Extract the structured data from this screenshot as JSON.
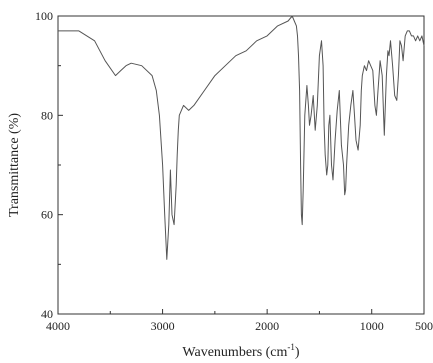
{
  "chart_data": {
    "type": "line",
    "title": "",
    "xlabel": "Wavenumbers (cm",
    "xlabel_sup": "-1",
    "xlabel_close": ")",
    "ylabel": "Transmittance (%)",
    "xlim": [
      4000,
      500
    ],
    "ylim": [
      40,
      100
    ],
    "x_reversed": true,
    "grid": false,
    "x_ticks": [
      4000,
      3000,
      2000,
      1000,
      500
    ],
    "x_tick_labels": [
      "4000",
      "3000",
      "2000",
      "1000",
      "500"
    ],
    "y_ticks": [
      40,
      60,
      80,
      100
    ],
    "y_tick_labels": [
      "40",
      "60",
      "80",
      "100"
    ],
    "line_color": "#555555",
    "series": [
      {
        "x": [
          4000,
          3800,
          3650,
          3550,
          3450,
          3400,
          3350,
          3300,
          3200,
          3100,
          3060,
          3030,
          3000,
          2980,
          2960,
          2940,
          2925,
          2910,
          2890,
          2870,
          2860,
          2850,
          2840,
          2800,
          2750,
          2700,
          2600,
          2500,
          2400,
          2300,
          2200,
          2100,
          2000,
          1900,
          1800,
          1760,
          1740,
          1720,
          1710,
          1700,
          1690,
          1680,
          1672,
          1665,
          1655,
          1640,
          1620,
          1605,
          1595,
          1580,
          1560,
          1540,
          1520,
          1500,
          1480,
          1465,
          1455,
          1445,
          1430,
          1420,
          1410,
          1400,
          1385,
          1370,
          1350,
          1330,
          1310,
          1290,
          1270,
          1258,
          1250,
          1240,
          1220,
          1200,
          1180,
          1165,
          1150,
          1130,
          1110,
          1100,
          1090,
          1070,
          1050,
          1030,
          1010,
          990,
          970,
          955,
          940,
          920,
          900,
          880,
          860,
          845,
          835,
          820,
          800,
          780,
          760,
          745,
          730,
          715,
          700,
          680,
          660,
          640,
          620,
          600,
          580,
          560,
          540,
          520,
          500
        ],
        "y": [
          97,
          97,
          95,
          91,
          88,
          89,
          90,
          90.5,
          90,
          88,
          85,
          80,
          70,
          60,
          51,
          58,
          69,
          60,
          58,
          66,
          72,
          77,
          80,
          82,
          81,
          82,
          85,
          88,
          90,
          92,
          93,
          95,
          96,
          98,
          99,
          100,
          99,
          98,
          96,
          92,
          85,
          70,
          60,
          58,
          65,
          80,
          86,
          82,
          78,
          80,
          84,
          77,
          82,
          92,
          95,
          90,
          78,
          72,
          68,
          70,
          78,
          80,
          70,
          67,
          75,
          81,
          85,
          74,
          70,
          64,
          65,
          70,
          78,
          82,
          85,
          80,
          75,
          73,
          78,
          85,
          88,
          90,
          89,
          91,
          90,
          89,
          82,
          80,
          85,
          91,
          88,
          76,
          88,
          93,
          92,
          95,
          90,
          84,
          83,
          88,
          95,
          94,
          91,
          96,
          97,
          97,
          96,
          96,
          95,
          96,
          95,
          96,
          94
        ]
      }
    ]
  }
}
